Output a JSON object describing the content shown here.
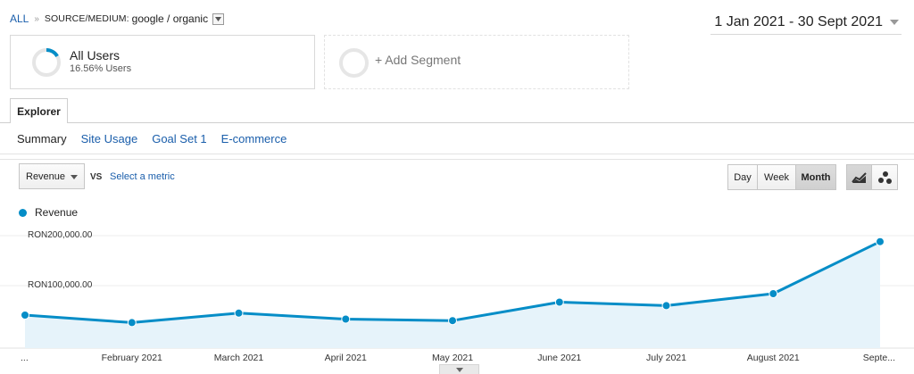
{
  "breadcrumb": {
    "all": "ALL",
    "separator": "»",
    "dimension": "SOURCE/MEDIUM:",
    "value": "google / organic"
  },
  "date_range": "1 Jan 2021 - 30 Sept 2021",
  "segments": [
    {
      "title": "All Users",
      "subtitle": "16.56% Users",
      "fraction": 0.1656
    },
    {
      "title": "+ Add Segment"
    }
  ],
  "tabs": {
    "explorer": "Explorer"
  },
  "subnav": [
    "Summary",
    "Site Usage",
    "Goal Set 1",
    "E-commerce"
  ],
  "controls": {
    "metric": "Revenue",
    "vs": "VS",
    "select_metric": "Select a metric",
    "periods": [
      "Day",
      "Week",
      "Month"
    ],
    "selected_period": "Month"
  },
  "colors": {
    "series": "#058dc7",
    "fill": "#e6f3fa",
    "link": "#1a5eab"
  },
  "chart_data": {
    "type": "area",
    "legend": [
      "Revenue"
    ],
    "x": [
      "...",
      "February 2021",
      "March 2021",
      "April 2021",
      "May 2021",
      "June 2021",
      "July 2021",
      "August 2021",
      "Septe..."
    ],
    "series": [
      {
        "name": "Revenue",
        "values": [
          41000,
          26000,
          45000,
          33000,
          30000,
          67000,
          60000,
          84000,
          188000
        ]
      }
    ],
    "yticks": [
      "RON200,000.00",
      "RON100,000.00"
    ],
    "ytick_values": [
      200000,
      100000
    ],
    "ylim": [
      -25000,
      200000
    ],
    "grid": true
  }
}
